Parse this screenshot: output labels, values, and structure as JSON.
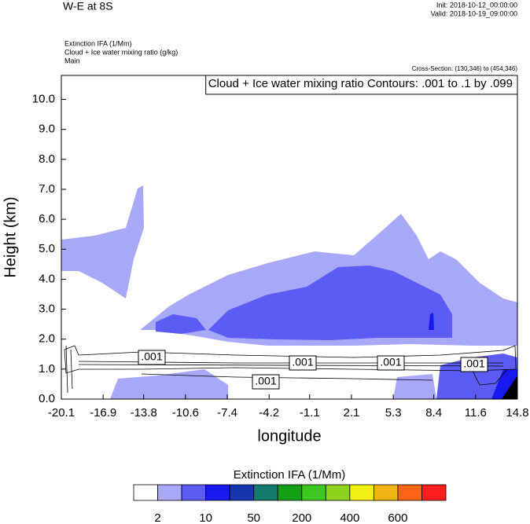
{
  "header": {
    "title": "W-E at 8S",
    "init": "Init: 2018-10-12_00:00:00",
    "valid": "Valid: 2018-10-19_09:00:00",
    "fields": [
      "Extinction IFA   (1/Mm)",
      "Cloud + Ice water mixing ratio   (g/kg)",
      "Main"
    ],
    "cross_section": "Cross-Section: (130,346) to (454,346)"
  },
  "chart_data": {
    "type": "contour",
    "contour_title": "Cloud + Ice water mixing ratio Contours: .001 to .1 by .099",
    "contour_labels": [
      ".001",
      ".001",
      ".001",
      ".001",
      ".001"
    ],
    "x_label": "longitude",
    "y_label": "Height (km)",
    "xlim": [
      -20.1,
      14.8
    ],
    "xticks": [
      -20.1,
      -16.9,
      -13.8,
      -10.6,
      -7.4,
      -4.2,
      -1.1,
      2.1,
      5.3,
      8.4,
      11.6,
      14.8
    ],
    "ylim": [
      0,
      10.8
    ],
    "yticks": [
      {
        "value": 0,
        "label": "0.0"
      },
      {
        "value": 1,
        "label": "1.0"
      },
      {
        "value": 2,
        "label": "2.0"
      },
      {
        "value": 3,
        "label": "3.0"
      },
      {
        "value": 4,
        "label": "4.0"
      },
      {
        "value": 5,
        "label": "5.0"
      },
      {
        "value": 6,
        "label": "6.0"
      },
      {
        "value": 7,
        "label": "7.0"
      },
      {
        "value": 8,
        "label": "8.0"
      },
      {
        "value": 9,
        "label": "9.0"
      },
      {
        "value": 10,
        "label": "10.0"
      }
    ],
    "colorbar": {
      "title": "Extinction IFA  (1/Mm)",
      "colors": [
        "#ffffff",
        "#a8a8f8",
        "#5c5cf5",
        "#1818f0",
        "#1437b0",
        "#147a6e",
        "#14a014",
        "#3cc81e",
        "#8cd21e",
        "#f0f014",
        "#f0b414",
        "#ff6414",
        "#ff1e1e"
      ],
      "labels": [
        2,
        10,
        50,
        200,
        400,
        600
      ]
    }
  }
}
